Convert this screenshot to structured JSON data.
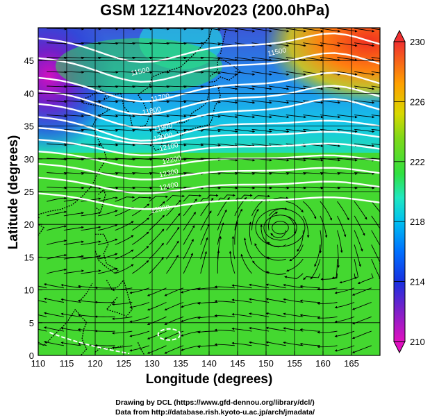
{
  "title": "GSM 12Z14Nov2023 (200.0hPa)",
  "xlabel": "Longitude (degrees)",
  "ylabel": "Latitude  (degrees)",
  "credits": {
    "drawing": "Drawing by DCL (https://www.gfd-dennou.org/library/dcl/)",
    "data": "Data from http://database.rish.kyoto-u.ac.jp/arch/jmadata/"
  },
  "map": {
    "lon_range": [
      110,
      170
    ],
    "lat_range": [
      0,
      50
    ],
    "x_ticks": [
      110,
      115,
      120,
      125,
      130,
      135,
      140,
      145,
      150,
      155,
      160,
      165
    ],
    "y_ticks": [
      0,
      5,
      10,
      15,
      20,
      25,
      30,
      35,
      40,
      45
    ],
    "grid_lon": [
      110,
      115,
      120,
      125,
      130,
      135,
      140,
      145,
      150,
      155,
      160,
      165,
      170
    ],
    "grid_lat": [
      0,
      5,
      10,
      15,
      20,
      25,
      30,
      35,
      40,
      45,
      50
    ]
  },
  "colorbar": {
    "min": 210,
    "max": 230,
    "labels": [
      210,
      214,
      218,
      222,
      226,
      230
    ],
    "colors": [
      "#e010c0",
      "#5028d0",
      "#0040ff",
      "#00a8ff",
      "#18e8d8",
      "#30e040",
      "#50d020",
      "#98d010",
      "#f0d000",
      "#ff9000",
      "#ff4010",
      "#e83030"
    ]
  },
  "contour_labels": [
    {
      "text": "11500",
      "lon": 152,
      "lat": 46
    },
    {
      "text": "11500",
      "lon": 128,
      "lat": 43
    },
    {
      "text": "11700",
      "lon": 131.5,
      "lat": 39
    },
    {
      "text": "11800",
      "lon": 130,
      "lat": 37
    },
    {
      "text": "11900",
      "lon": 132,
      "lat": 34.5
    },
    {
      "text": "12000",
      "lon": 132,
      "lat": 33
    },
    {
      "text": "12100",
      "lon": 133,
      "lat": 31.5
    },
    {
      "text": "12200",
      "lon": 133.5,
      "lat": 29.5
    },
    {
      "text": "12300",
      "lon": 133,
      "lat": 27.5
    },
    {
      "text": "12400",
      "lon": 133,
      "lat": 25.5
    },
    {
      "text": "12500",
      "lon": 131.5,
      "lat": 22
    }
  ],
  "wind_centers": [
    {
      "name": "anticyclone",
      "lon": 152.5,
      "lat": 19.5
    }
  ]
}
